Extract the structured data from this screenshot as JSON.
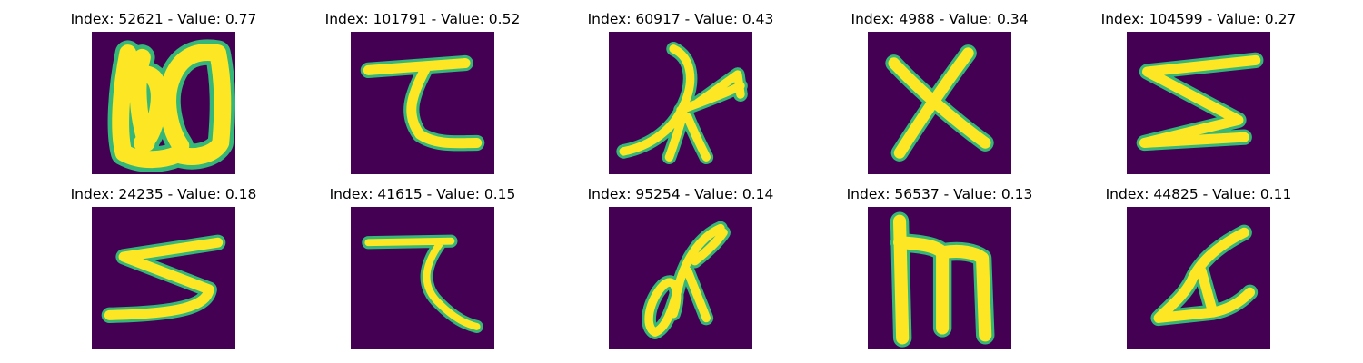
{
  "colors": {
    "background": "#440154",
    "stroke": "#fde725",
    "edge": "#35b779"
  },
  "panels": [
    {
      "title": "Index: 52621 - Value: 0.77",
      "glyph": "loop-w-icon"
    },
    {
      "title": "Index: 101791 - Value: 0.52",
      "glyph": "hook-stroke-icon"
    },
    {
      "title": "Index: 60917 - Value: 0.43",
      "glyph": "branch-stroke-icon"
    },
    {
      "title": "Index: 4988 - Value: 0.34",
      "glyph": "x-stroke-icon"
    },
    {
      "title": "Index: 104599 - Value: 0.27",
      "glyph": "zigzag-stroke-icon"
    },
    {
      "title": "Index: 24235 - Value: 0.18",
      "glyph": "zigzag-stroke-icon"
    },
    {
      "title": "Index: 41615 - Value: 0.15",
      "glyph": "hook-stroke-icon"
    },
    {
      "title": "Index: 95254 - Value: 0.14",
      "glyph": "curl-stroke-icon"
    },
    {
      "title": "Index: 56537 - Value: 0.13",
      "glyph": "m-stroke-icon"
    },
    {
      "title": "Index: 44825 - Value: 0.11",
      "glyph": "triangle-stroke-icon"
    }
  ]
}
